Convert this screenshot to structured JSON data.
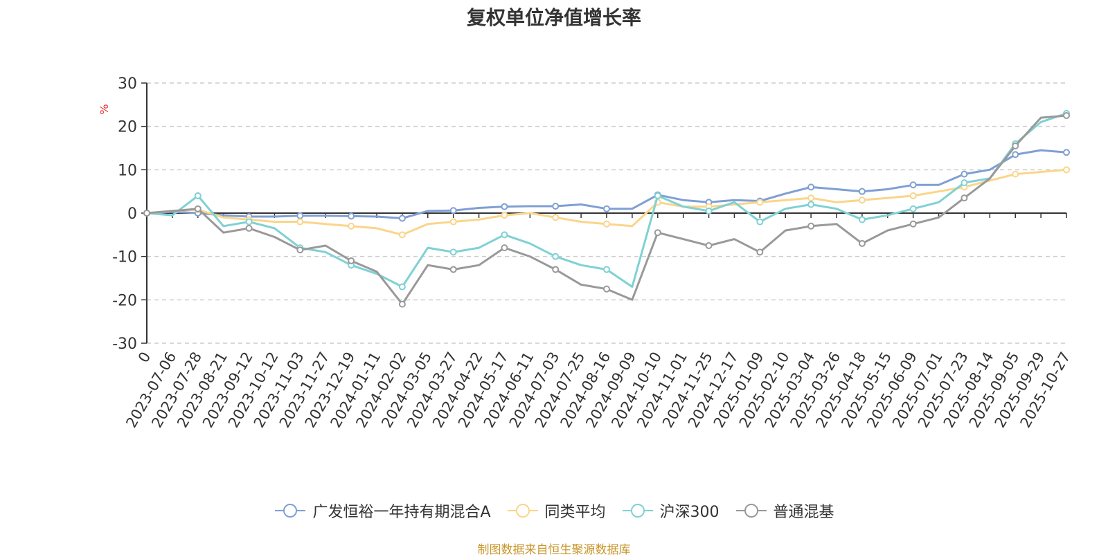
{
  "chart_data": {
    "type": "line",
    "title": "复权单位净值增长率",
    "ylabel": "%",
    "ylim": [
      -30,
      30
    ],
    "yticks": [
      30,
      20,
      10,
      0,
      -10,
      -20,
      -30
    ],
    "x_tick_labels": [
      "0",
      "2023-07-06",
      "2023-07-28",
      "2023-08-21",
      "2023-09-12",
      "2023-10-12",
      "2023-11-03",
      "2023-11-27",
      "2023-12-19",
      "2024-01-11",
      "2024-02-02",
      "2024-03-05",
      "2024-03-27",
      "2024-04-22",
      "2024-05-17",
      "2024-06-11",
      "2024-07-03",
      "2024-07-25",
      "2024-08-16",
      "2024-09-09",
      "2024-10-10",
      "2024-11-01",
      "2024-11-25",
      "2024-12-17",
      "2025-01-09",
      "2025-02-10",
      "2025-03-04",
      "2025-03-26",
      "2025-04-18",
      "2025-05-15",
      "2025-06-09",
      "2025-07-01",
      "2025-07-23",
      "2025-08-14",
      "2025-09-05",
      "2025-09-29",
      "2025-10-27"
    ],
    "grid": true,
    "legend_position": "bottom",
    "series": [
      {
        "name": "广发恒裕一年持有期混合A",
        "color": "#7f9fd4",
        "values": [
          0,
          0.3,
          0,
          -0.5,
          -0.8,
          -0.8,
          -0.6,
          -0.6,
          -0.7,
          -0.8,
          -1.2,
          0.5,
          0.6,
          1.2,
          1.5,
          1.6,
          1.6,
          2.0,
          1.0,
          1.0,
          4.2,
          3.0,
          2.5,
          3.0,
          2.8,
          4.5,
          6.0,
          5.5,
          5.0,
          5.5,
          6.5,
          6.5,
          9.0,
          10.0,
          13.5,
          14.5,
          14.0
        ]
      },
      {
        "name": "同类平均",
        "color": "#fad58a",
        "values": [
          0,
          0.5,
          0.8,
          -1.0,
          -1.5,
          -2.0,
          -2.0,
          -2.5,
          -3.0,
          -3.5,
          -5.0,
          -2.5,
          -2.0,
          -1.5,
          -0.5,
          0,
          -1.0,
          -2.0,
          -2.5,
          -3.0,
          2.5,
          1.5,
          1.5,
          2.0,
          2.5,
          3.0,
          3.5,
          2.5,
          3.0,
          3.5,
          4.0,
          5.0,
          6.0,
          7.5,
          9.0,
          9.5,
          10.0
        ]
      },
      {
        "name": "沪深300",
        "color": "#7fd1d4",
        "values": [
          0,
          -0.5,
          4.0,
          -3.0,
          -2.0,
          -3.5,
          -8.0,
          -9.0,
          -12.0,
          -14.0,
          -17.0,
          -8.0,
          -9.0,
          -8.0,
          -5.0,
          -7.0,
          -10.0,
          -12.0,
          -13.0,
          -17.0,
          4.0,
          1.5,
          0.5,
          2.5,
          -2.0,
          1.0,
          2.0,
          1.0,
          -1.5,
          -0.5,
          1.0,
          2.5,
          7.0,
          8.0,
          16.0,
          21.0,
          23.0
        ]
      },
      {
        "name": "普通混基",
        "color": "#999999",
        "values": [
          0,
          0.5,
          1.0,
          -4.5,
          -3.5,
          -5.5,
          -8.5,
          -7.5,
          -11.0,
          -13.5,
          -21.0,
          -12.0,
          -13.0,
          -12.0,
          -8.0,
          -10.0,
          -13.0,
          -16.5,
          -17.5,
          -20.0,
          -4.5,
          -6.0,
          -7.5,
          -6.0,
          -9.0,
          -4.0,
          -3.0,
          -2.5,
          -7.0,
          -4.0,
          -2.5,
          -1.0,
          3.5,
          8.0,
          15.5,
          22.0,
          22.5
        ]
      }
    ]
  },
  "source": "制图数据来自恒生聚源数据库"
}
